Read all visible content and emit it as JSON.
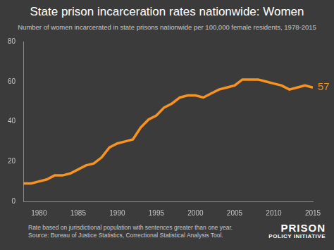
{
  "chart_data": {
    "type": "line",
    "title": "State prison incarceration rates nationwide: Women",
    "subtitle": "Number of women incarcerated in state prisons nationwide per 100,000 female residents, 1978-2015",
    "notes": [
      "Rate based on jurisdictional population with sentences greater than one year.",
      "Source: Bureau of Justice Statistics, Correctional Statistical Analysis Tool."
    ],
    "logo": [
      "PRISON",
      "POLICY INITIATIVE"
    ],
    "x": [
      1978,
      1979,
      1980,
      1981,
      1982,
      1983,
      1984,
      1985,
      1986,
      1987,
      1988,
      1989,
      1990,
      1991,
      1992,
      1993,
      1994,
      1995,
      1996,
      1997,
      1998,
      1999,
      2000,
      2001,
      2002,
      2003,
      2004,
      2005,
      2006,
      2007,
      2008,
      2009,
      2010,
      2011,
      2012,
      2013,
      2014,
      2015
    ],
    "values": [
      9,
      9,
      10,
      11,
      13,
      13,
      14,
      16,
      18,
      19,
      22,
      27,
      29,
      30,
      31,
      37,
      41,
      43,
      47,
      49,
      52,
      53,
      53,
      52,
      54,
      56,
      57,
      58,
      61,
      61,
      61,
      60,
      59,
      58,
      56,
      57,
      58,
      57
    ],
    "color": "#f7931e",
    "xlim": [
      1978,
      2015
    ],
    "xticks": [
      1980,
      1985,
      1990,
      1995,
      2000,
      2005,
      2010,
      2015
    ],
    "ylim": [
      0,
      80
    ],
    "yticks": [
      0,
      20,
      40,
      60,
      80
    ],
    "grid": false,
    "annotations": [
      {
        "text": "57",
        "x": 2015,
        "y": 57
      }
    ]
  }
}
